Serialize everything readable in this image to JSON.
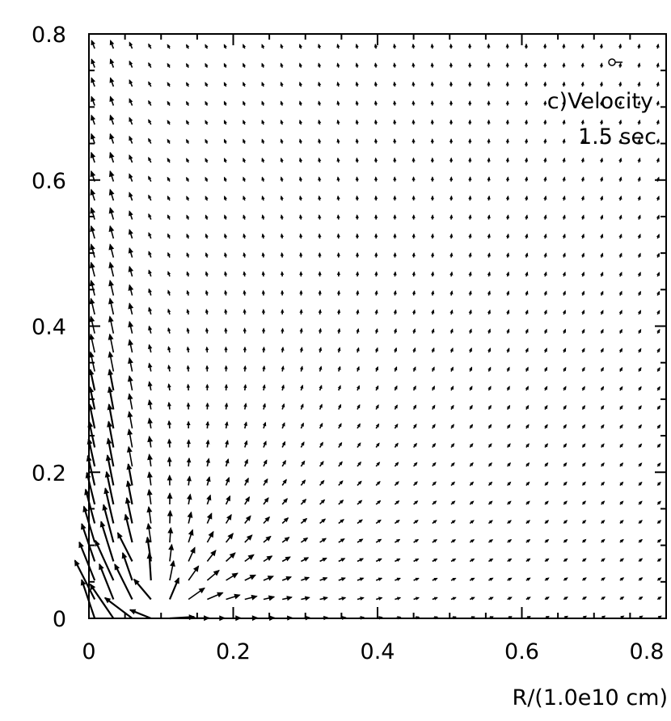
{
  "chart_data": {
    "type": "vector-field",
    "title": "",
    "annotations": [
      "c)Velocity",
      "1.5 sec"
    ],
    "xlabel": "R/(1.0e10 cm)",
    "ylabel": "",
    "xlim": [
      0,
      0.8
    ],
    "ylim": [
      0,
      0.8
    ],
    "x_ticks": [
      0,
      0.2,
      0.4,
      0.6,
      0.8
    ],
    "x_tick_labels": [
      "0",
      "0.2",
      "0.4",
      "0.6",
      "0.8"
    ],
    "y_ticks": [
      0,
      0.2,
      0.4,
      0.6,
      0.8
    ],
    "y_tick_labels": [
      "0",
      "0.2",
      "0.4",
      "0.6",
      "0.8"
    ],
    "grid": false,
    "legend": "none",
    "field": {
      "description_source_center": [
        0.1,
        0.0
      ],
      "jet_axis_x": 0.02
    }
  }
}
